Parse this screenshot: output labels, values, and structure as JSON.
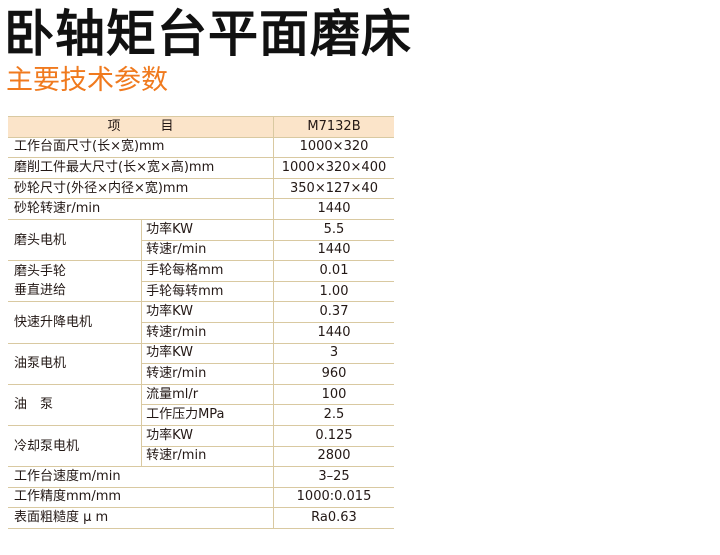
{
  "title": "卧轴矩台平面磨床",
  "subtitle": "主要技术参数",
  "colors": {
    "accent": "#f07a1e",
    "header_bg": "#fbe4c9",
    "rule": "#d9c9a1"
  },
  "table": {
    "header": {
      "item_a": "项",
      "item_b": "目",
      "model": "M7132B"
    },
    "rows": [
      {
        "label": "工作台面尺寸(长×宽)mm",
        "value": "1000×320"
      },
      {
        "label": "磨削工件最大尺寸(长×宽×高)mm",
        "value": "1000×320×400"
      },
      {
        "label": "砂轮尺寸(外径×内径×宽)mm",
        "value": "350×127×40"
      },
      {
        "label": "砂轮转速r/min",
        "value": "1440"
      },
      {
        "group": "磨头电机",
        "subs": [
          {
            "label": "功率KW",
            "value": "5.5"
          },
          {
            "label": "转速r/min",
            "value": "1440"
          }
        ]
      },
      {
        "group": "磨头手轮\n垂直进给",
        "subs": [
          {
            "label": "手轮每格mm",
            "value": "0.01"
          },
          {
            "label": "手轮每转mm",
            "value": "1.00"
          }
        ]
      },
      {
        "group": "快速升降电机",
        "subs": [
          {
            "label": "功率KW",
            "value": "0.37"
          },
          {
            "label": "转速r/min",
            "value": "1440"
          }
        ]
      },
      {
        "group": "油泵电机",
        "subs": [
          {
            "label": "功率KW",
            "value": "3"
          },
          {
            "label": "转速r/min",
            "value": "960"
          }
        ]
      },
      {
        "group": "油　泵",
        "subs": [
          {
            "label": "流量ml/r",
            "value": "100"
          },
          {
            "label": "工作压力MPa",
            "value": "2.5"
          }
        ]
      },
      {
        "group": "冷却泵电机",
        "subs": [
          {
            "label": "功率KW",
            "value": "0.125"
          },
          {
            "label": "转速r/min",
            "value": "2800"
          }
        ]
      },
      {
        "label": "工作台速度m/min",
        "value": "3–25"
      },
      {
        "label": "工作精度mm/mm",
        "value": "1000:0.015"
      },
      {
        "label": "表面粗糙度 μ m",
        "value": "Ra0.63"
      }
    ]
  }
}
